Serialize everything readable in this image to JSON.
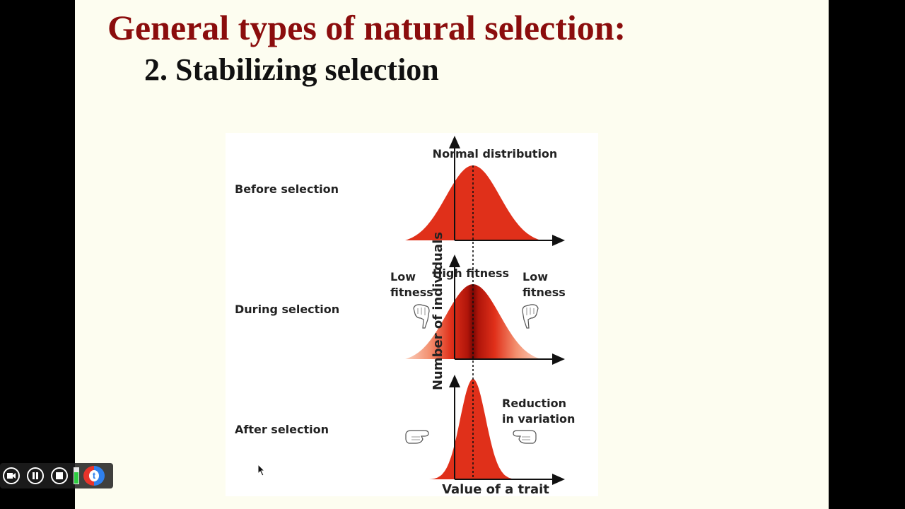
{
  "slide": {
    "title": "General types of natural selection:",
    "subtitle": "2.  Stabilizing selection"
  },
  "figure": {
    "stages": [
      {
        "label": "Before selection",
        "curve": "normal"
      },
      {
        "label": "During selection",
        "curve": "normal-shaded"
      },
      {
        "label": "After selection",
        "curve": "narrow"
      }
    ],
    "annotations": {
      "normal_distribution": "Normal distribution",
      "high_fitness": "High fitness",
      "low_fitness_left": [
        "Low",
        "fitness"
      ],
      "low_fitness_right": [
        "Low",
        "fitness"
      ],
      "reduction": [
        "Reduction",
        "in variation"
      ]
    },
    "y_axis_label": "Number of individuals",
    "x_axis_label": "Value of a trait",
    "colors": {
      "curve": "#e0301a",
      "curve_dark": "#8c0a05",
      "curve_light": "#fbd2c0"
    }
  },
  "player": {
    "buttons": [
      "camera-icon",
      "pause-icon",
      "stop-icon",
      "bar-icon",
      "brand-icon"
    ]
  }
}
